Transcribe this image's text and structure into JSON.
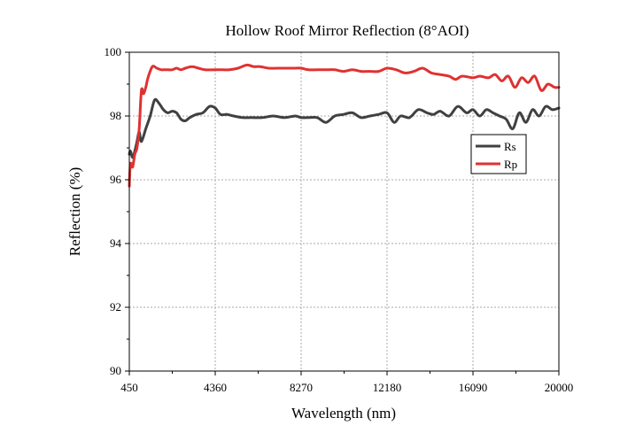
{
  "chart_data": {
    "type": "line",
    "title": "Hollow Roof Mirror Reflection (8°AOI)",
    "xlabel": "Wavelength (nm)",
    "ylabel": "Reflection (%)",
    "xlim": [
      450,
      20000
    ],
    "ylim": [
      90,
      100
    ],
    "xticks": [
      450,
      4360,
      8270,
      12180,
      16090,
      20000
    ],
    "xtick_labels": [
      "450",
      "4360",
      "8270",
      "12180",
      "16090",
      "20000"
    ],
    "yticks": [
      90,
      92,
      94,
      96,
      98,
      100
    ],
    "ytick_labels": [
      "90",
      "92",
      "94",
      "96",
      "98",
      "100"
    ],
    "grid": true,
    "legend_position": "right-middle",
    "series": [
      {
        "name": "Rs",
        "color": "#404040",
        "x": [
          450,
          500,
          600,
          700,
          800,
          900,
          1000,
          1200,
          1400,
          1600,
          1800,
          2000,
          2200,
          2400,
          2600,
          2800,
          3000,
          3200,
          3500,
          3800,
          4100,
          4360,
          4600,
          4900,
          5200,
          5600,
          6000,
          6500,
          7000,
          7500,
          8000,
          8270,
          8600,
          9000,
          9400,
          9800,
          10200,
          10600,
          11000,
          11400,
          11800,
          12180,
          12500,
          12800,
          13200,
          13600,
          14000,
          14300,
          14600,
          15000,
          15400,
          15800,
          16090,
          16400,
          16700,
          17000,
          17300,
          17600,
          17900,
          18200,
          18500,
          18800,
          19100,
          19400,
          19700,
          20000
        ],
        "values": [
          96.8,
          96.9,
          96.7,
          96.9,
          97.2,
          97.5,
          97.2,
          97.6,
          98.0,
          98.5,
          98.4,
          98.2,
          98.1,
          98.15,
          98.1,
          97.9,
          97.85,
          97.95,
          98.05,
          98.1,
          98.3,
          98.25,
          98.05,
          98.05,
          98.0,
          97.95,
          97.95,
          97.95,
          98.0,
          97.95,
          98.0,
          97.95,
          97.95,
          97.95,
          97.8,
          98.0,
          98.05,
          98.1,
          97.95,
          98.0,
          98.05,
          98.1,
          97.8,
          98.0,
          97.95,
          98.2,
          98.1,
          98.05,
          98.15,
          98.0,
          98.3,
          98.1,
          98.2,
          98.0,
          98.2,
          98.1,
          98.0,
          97.9,
          97.6,
          98.1,
          97.8,
          98.2,
          98.0,
          98.3,
          98.2,
          98.25
        ]
      },
      {
        "name": "Rp",
        "color": "#e03131",
        "x": [
          450,
          500,
          600,
          700,
          800,
          900,
          1000,
          1100,
          1200,
          1300,
          1500,
          1700,
          1900,
          2000,
          2200,
          2400,
          2600,
          2800,
          3000,
          3300,
          3600,
          3900,
          4360,
          4700,
          5000,
          5400,
          5800,
          6100,
          6400,
          6800,
          7200,
          7600,
          8000,
          8270,
          8600,
          9000,
          9400,
          9800,
          10200,
          10600,
          11000,
          11400,
          11800,
          12180,
          12600,
          13000,
          13400,
          13800,
          14200,
          14600,
          15000,
          15300,
          15600,
          16090,
          16400,
          16800,
          17100,
          17400,
          17700,
          18000,
          18300,
          18600,
          18900,
          19200,
          19500,
          19800,
          20000
        ],
        "values": [
          95.8,
          96.5,
          96.4,
          96.8,
          97.0,
          97.6,
          98.8,
          98.7,
          98.9,
          99.2,
          99.55,
          99.5,
          99.45,
          99.45,
          99.45,
          99.45,
          99.5,
          99.45,
          99.5,
          99.55,
          99.5,
          99.45,
          99.45,
          99.45,
          99.45,
          99.5,
          99.6,
          99.55,
          99.55,
          99.5,
          99.5,
          99.5,
          99.5,
          99.5,
          99.45,
          99.45,
          99.45,
          99.45,
          99.4,
          99.45,
          99.4,
          99.4,
          99.4,
          99.5,
          99.45,
          99.35,
          99.4,
          99.5,
          99.35,
          99.3,
          99.25,
          99.15,
          99.25,
          99.2,
          99.25,
          99.2,
          99.3,
          99.1,
          99.25,
          98.9,
          99.2,
          99.05,
          99.25,
          98.8,
          99.0,
          98.9,
          98.9
        ]
      }
    ]
  }
}
